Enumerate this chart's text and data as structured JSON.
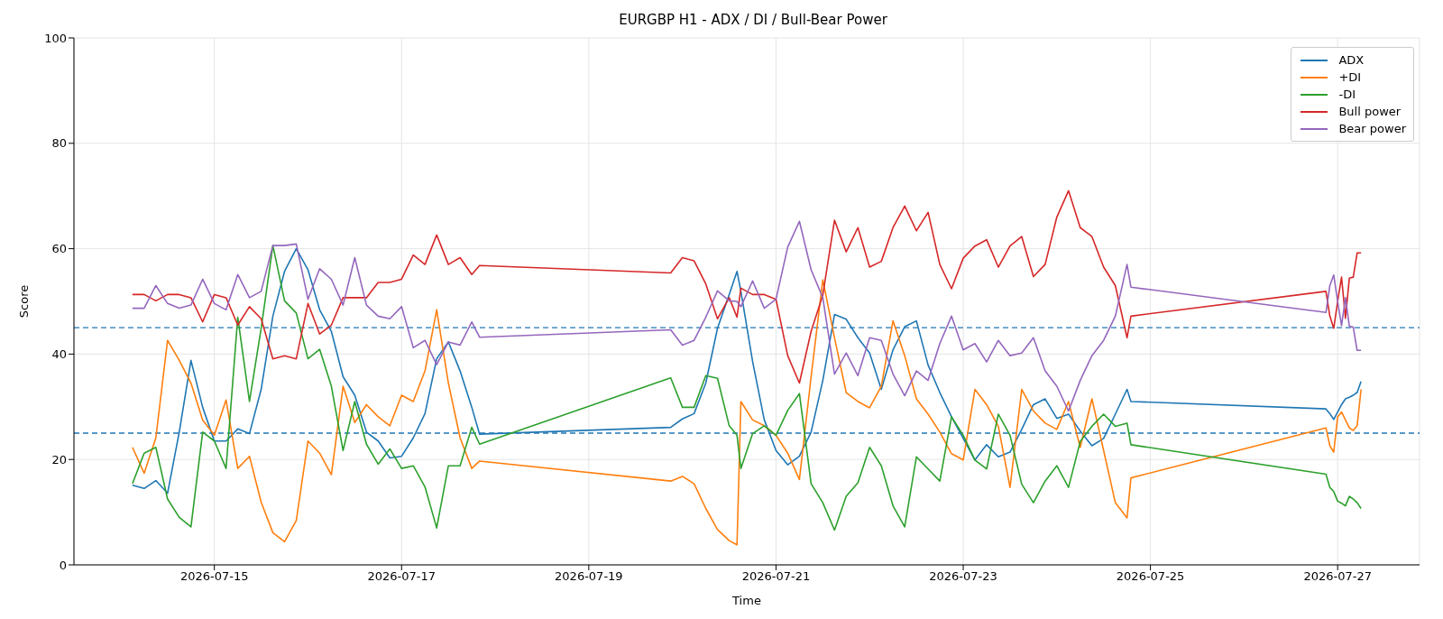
{
  "chart_data": {
    "type": "line",
    "title": "EURGBP H1 - ADX / DI / Bull-Bear Power",
    "xlabel": "Time",
    "ylabel": "Score",
    "x": [
      "2026-07-14T03:00",
      "2026-07-14T06:00",
      "2026-07-14T09:00",
      "2026-07-14T12:00",
      "2026-07-14T15:00",
      "2026-07-14T18:00",
      "2026-07-14T21:00",
      "2026-07-15T00:00",
      "2026-07-15T03:00",
      "2026-07-15T06:00",
      "2026-07-15T09:00",
      "2026-07-15T12:00",
      "2026-07-15T15:00",
      "2026-07-15T18:00",
      "2026-07-15T21:00",
      "2026-07-16T00:00",
      "2026-07-16T03:00",
      "2026-07-16T06:00",
      "2026-07-16T09:00",
      "2026-07-16T12:00",
      "2026-07-16T15:00",
      "2026-07-16T18:00",
      "2026-07-16T21:00",
      "2026-07-17T00:00",
      "2026-07-17T03:00",
      "2026-07-17T06:00",
      "2026-07-17T09:00",
      "2026-07-17T12:00",
      "2026-07-17T15:00",
      "2026-07-17T18:00",
      "2026-07-17T20:00",
      "2026-07-19T21:00",
      "2026-07-20T00:00",
      "2026-07-20T03:00",
      "2026-07-20T06:00",
      "2026-07-20T09:00",
      "2026-07-20T12:00",
      "2026-07-20T14:00",
      "2026-07-20T15:00",
      "2026-07-20T18:00",
      "2026-07-20T21:00",
      "2026-07-21T00:00",
      "2026-07-21T03:00",
      "2026-07-21T06:00",
      "2026-07-21T09:00",
      "2026-07-21T12:00",
      "2026-07-21T15:00",
      "2026-07-21T18:00",
      "2026-07-21T21:00",
      "2026-07-22T00:00",
      "2026-07-22T03:00",
      "2026-07-22T06:00",
      "2026-07-22T09:00",
      "2026-07-22T12:00",
      "2026-07-22T15:00",
      "2026-07-22T18:00",
      "2026-07-22T21:00",
      "2026-07-23T00:00",
      "2026-07-23T03:00",
      "2026-07-23T06:00",
      "2026-07-23T09:00",
      "2026-07-23T12:00",
      "2026-07-23T15:00",
      "2026-07-23T18:00",
      "2026-07-23T21:00",
      "2026-07-24T00:00",
      "2026-07-24T03:00",
      "2026-07-24T06:00",
      "2026-07-24T09:00",
      "2026-07-24T12:00",
      "2026-07-24T15:00",
      "2026-07-24T18:00",
      "2026-07-24T19:00",
      "2026-07-26T21:00",
      "2026-07-26T22:00",
      "2026-07-26T23:00",
      "2026-07-27T00:00",
      "2026-07-27T01:00",
      "2026-07-27T02:00",
      "2026-07-27T03:00",
      "2026-07-27T04:00",
      "2026-07-27T05:00",
      "2026-07-27T06:00"
    ],
    "series": [
      {
        "name": "ADX",
        "color": "#1f77b4",
        "values": [
          15.1,
          14.5,
          16,
          13.6,
          25.2,
          38.8,
          29.9,
          23.5,
          23.5,
          25.8,
          24.9,
          33.3,
          47.2,
          55.7,
          60,
          56,
          48.4,
          44.3,
          35.7,
          32.2,
          25.2,
          23.5,
          20.3,
          20.6,
          24.1,
          28.7,
          39.1,
          42.3,
          36.8,
          29.9,
          24.8,
          26.1,
          27.7,
          28.7,
          34.5,
          44.9,
          51.3,
          55.7,
          51.9,
          38.6,
          27.5,
          21.7,
          19,
          20.6,
          25.2,
          35,
          47.5,
          46.6,
          43.1,
          40.2,
          33.3,
          40.8,
          45.2,
          46.3,
          37.9,
          32.7,
          28.1,
          24,
          19.9,
          22.8,
          20.5,
          21.4,
          25.7,
          30.4,
          31.5,
          27.8,
          28.6,
          25.4,
          22.6,
          24,
          28.6,
          33.3,
          31,
          29.6,
          28.7,
          27.6,
          29,
          30.4,
          31.5,
          31.8,
          32.2,
          32.7,
          34.8
        ]
      },
      {
        "name": "+DI",
        "color": "#ff7f0e",
        "values": [
          22.3,
          17.4,
          24.1,
          42.6,
          38.8,
          34.5,
          27.5,
          24.6,
          31.3,
          18.3,
          20.6,
          11.9,
          6.1,
          4.4,
          8.4,
          23.5,
          21.2,
          17.1,
          33.9,
          27,
          30.4,
          28.1,
          26.4,
          32.2,
          31,
          36.8,
          48.4,
          34.5,
          24.1,
          18.3,
          19.7,
          15.9,
          16.8,
          15.4,
          10.7,
          6.7,
          4.6,
          3.8,
          31,
          27.5,
          26.4,
          24.6,
          21.2,
          16.2,
          35.7,
          54.1,
          43.1,
          32.7,
          31,
          29.8,
          33.9,
          46.3,
          39.7,
          31.5,
          28.6,
          25.2,
          21.1,
          19.9,
          33.3,
          30.4,
          26.3,
          14.7,
          33.3,
          29.2,
          26.9,
          25.7,
          31,
          22.3,
          31.5,
          21.7,
          11.8,
          8.9,
          16.5,
          26,
          22.6,
          21.4,
          28.1,
          29,
          27.5,
          26,
          25.5,
          26.4,
          33.3
        ]
      },
      {
        "name": "-DI",
        "color": "#2ca02c",
        "values": [
          15.4,
          21.2,
          22.3,
          12.5,
          9,
          7.2,
          25.2,
          23.5,
          18.3,
          47,
          31,
          44.9,
          60.6,
          50.1,
          47.8,
          39.1,
          40.9,
          33.9,
          21.7,
          31,
          22.9,
          19.1,
          22,
          18.3,
          18.8,
          14.8,
          7,
          18.8,
          18.8,
          26.1,
          22.9,
          35.5,
          29.9,
          29.9,
          35.9,
          35.4,
          26.4,
          24.6,
          18.3,
          24.9,
          26.4,
          24.6,
          29.3,
          32.5,
          15.4,
          11.8,
          6.6,
          13,
          15.6,
          22.3,
          18.8,
          11.2,
          7.2,
          20.5,
          18.2,
          15.9,
          28.1,
          24.6,
          19.9,
          18.2,
          28.6,
          24.6,
          15.3,
          11.8,
          15.9,
          18.8,
          14.7,
          23.4,
          26.3,
          28.6,
          26.3,
          26.9,
          22.8,
          17.2,
          14.7,
          13.9,
          12.1,
          11.7,
          11.2,
          13,
          12.5,
          11.8,
          10.7
        ]
      },
      {
        "name": "Bull power",
        "color": "#d62728",
        "values": [
          51.3,
          51.3,
          50.1,
          51.3,
          51.3,
          50.7,
          46.1,
          51.3,
          50.7,
          45.5,
          49,
          46.7,
          39.1,
          39.7,
          39.1,
          49.6,
          43.8,
          45.5,
          50.7,
          50.7,
          50.7,
          53.6,
          53.6,
          54.2,
          58.8,
          57,
          62.6,
          57,
          58.3,
          55.1,
          56.8,
          55.4,
          58.3,
          57.7,
          53.3,
          46.7,
          50.7,
          47,
          52.5,
          51.3,
          51.3,
          50.4,
          39.7,
          34.5,
          44.3,
          51.2,
          65.4,
          59.4,
          64,
          56.5,
          57.6,
          64,
          68.1,
          63.4,
          66.9,
          57,
          52.4,
          58.2,
          60.5,
          61.7,
          56.5,
          60.5,
          62.3,
          54.7,
          57,
          66,
          71,
          64,
          62.3,
          56.5,
          53,
          43.1,
          47.2,
          51.9,
          47.2,
          44.9,
          50,
          54.6,
          46.8,
          54.4,
          54.6,
          59.2,
          59.2
        ]
      },
      {
        "name": "Bear power",
        "color": "#9467bd",
        "values": [
          48.7,
          48.7,
          53,
          49.6,
          48.7,
          49.3,
          54.2,
          49.6,
          48.4,
          55.1,
          50.7,
          51.9,
          60.6,
          60.6,
          60.9,
          50.4,
          56.2,
          54.2,
          49.3,
          58.3,
          49.3,
          47.2,
          46.7,
          49,
          41.2,
          42.6,
          38,
          42.3,
          41.7,
          46.1,
          43.2,
          44.6,
          41.7,
          42.6,
          47,
          52,
          50.1,
          50,
          49,
          53.9,
          48.7,
          50.4,
          60.3,
          65.2,
          56,
          50.7,
          36.2,
          40.2,
          35.9,
          43.1,
          42.6,
          36.2,
          32.1,
          36.8,
          35,
          42,
          47.2,
          40.8,
          42,
          38.5,
          42.6,
          39.7,
          40.2,
          43.1,
          36.8,
          33.9,
          29.2,
          35,
          39.7,
          42.6,
          47.2,
          57,
          52.7,
          47.9,
          53,
          55,
          50,
          45.4,
          50.7,
          45.3,
          45.1,
          40.7,
          40.7
        ]
      }
    ],
    "xlim": [
      "2026-07-13T12:00",
      "2026-07-27T21:00"
    ],
    "xticks": [
      "2026-07-15",
      "2026-07-17",
      "2026-07-19",
      "2026-07-21",
      "2026-07-23",
      "2026-07-25",
      "2026-07-27"
    ],
    "ylim": [
      0,
      100
    ],
    "yticks": [
      0,
      20,
      40,
      60,
      80,
      100
    ],
    "ref_lines": [
      {
        "axis": "y",
        "value": 45,
        "color": "#1f77b4",
        "line_style": "dashed"
      },
      {
        "axis": "y",
        "value": 25,
        "color": "#1f77b4",
        "line_style": "dashed"
      }
    ],
    "grid": true,
    "legend": "top right"
  }
}
